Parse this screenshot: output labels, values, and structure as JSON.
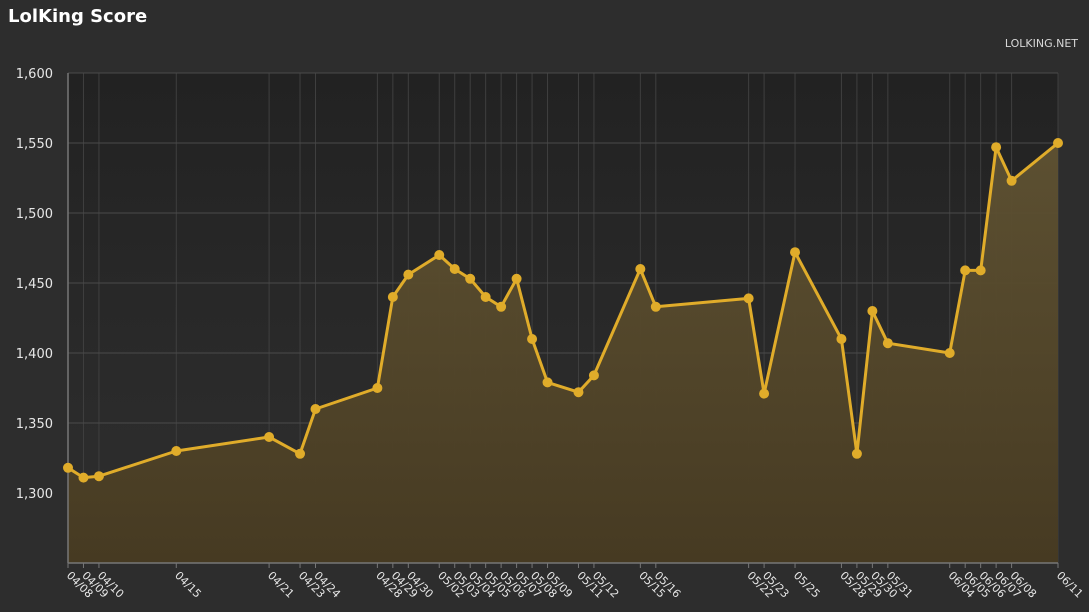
{
  "header": {
    "title": "LolKing Score",
    "source": "LOLKING.NET"
  },
  "colors": {
    "background": "#2d2d2d",
    "plot_bg_top": "#262626",
    "line": "#e0ac2a",
    "area_fill": "#6a5a2a",
    "grid": "#4a4a4a"
  },
  "chart_data": {
    "type": "area",
    "title": "LolKing Score",
    "xlabel": "",
    "ylabel": "",
    "ylim": [
      1250,
      1600
    ],
    "yticks": [
      1300,
      1350,
      1400,
      1450,
      1500,
      1550,
      1600
    ],
    "ytick_labels": [
      "1,300",
      "1,350",
      "1,400",
      "1,450",
      "1,500",
      "1,550",
      "1,600"
    ],
    "grid": true,
    "legend": "none",
    "x": [
      "04/08",
      "04/09",
      "04/10",
      "04/15",
      "04/21",
      "04/23",
      "04/24",
      "04/28",
      "04/29",
      "04/30",
      "05/02",
      "05/03",
      "05/04",
      "05/05",
      "05/06",
      "05/07",
      "05/08",
      "05/09",
      "05/11",
      "05/12",
      "05/15",
      "05/16",
      "05/22",
      "05/23",
      "05/25",
      "05/28",
      "05/29",
      "05/30",
      "05/31",
      "06/04",
      "06/05",
      "06/06",
      "06/07",
      "06/08",
      "06/11"
    ],
    "values": [
      1318,
      1311,
      1312,
      1330,
      1340,
      1328,
      1360,
      1375,
      1440,
      1456,
      1470,
      1460,
      1453,
      1440,
      1433,
      1453,
      1410,
      1379,
      1372,
      1384,
      1460,
      1433,
      1439,
      1371,
      1472,
      1410,
      1328,
      1430,
      1407,
      1400,
      1459,
      1459,
      1547,
      1523,
      1550
    ]
  }
}
